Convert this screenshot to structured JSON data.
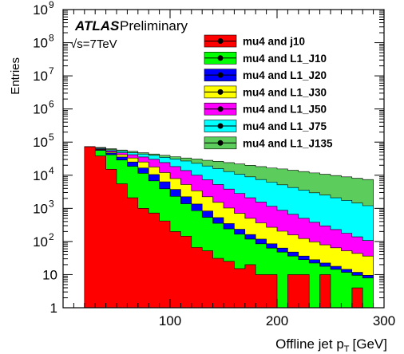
{
  "chart_data": {
    "type": "area",
    "title": "",
    "xlabel_main": "Offline jet p",
    "xlabel_sub": "T",
    "xlabel_unit": "[GeV]",
    "ylabel": "Entries",
    "xlim": [
      0,
      300
    ],
    "ylim_log10": [
      0,
      9
    ],
    "log_y": true,
    "x_ticks": [
      100,
      200,
      300
    ],
    "y_ticks": [
      {
        "v": 1,
        "label": "1"
      },
      {
        "v": 10,
        "label": "10"
      },
      {
        "v": 100,
        "label": "10",
        "exp": "2"
      },
      {
        "v": 1000,
        "label": "10",
        "exp": "3"
      },
      {
        "v": 10000,
        "label": "10",
        "exp": "4"
      },
      {
        "v": 100000,
        "label": "10",
        "exp": "5"
      },
      {
        "v": 1000000,
        "label": "10",
        "exp": "6"
      },
      {
        "v": 10000000,
        "label": "10",
        "exp": "7"
      },
      {
        "v": 100000000,
        "label": "10",
        "exp": "8"
      },
      {
        "v": 1000000000,
        "label": "10",
        "exp": "9"
      }
    ],
    "annotation": {
      "atlas": "ATLAS",
      "prelim": "Preliminary",
      "energy": "√s=7TeV"
    },
    "bin_width": 10,
    "x_start": 20,
    "x_end": 290,
    "legend_position": "top-right",
    "series": [
      {
        "name": "mu4 and L1_J135",
        "color": "#5ccc5c",
        "log10": [
          4.86,
          4.84,
          4.8,
          4.76,
          4.72,
          4.68,
          4.64,
          4.6,
          4.56,
          4.52,
          4.49,
          4.45,
          4.42,
          4.38,
          4.34,
          4.3,
          4.26,
          4.22,
          4.19,
          4.15,
          4.11,
          4.07,
          4.03,
          3.99,
          3.95,
          3.91,
          3.87
        ]
      },
      {
        "name": "mu4 and L1_J75",
        "color": "#00ffff",
        "log10": [
          4.86,
          4.82,
          4.77,
          4.73,
          4.68,
          4.64,
          4.6,
          4.54,
          4.49,
          4.43,
          4.36,
          4.28,
          4.2,
          4.11,
          4.03,
          3.95,
          3.87,
          3.79,
          3.71,
          3.63,
          3.55,
          3.47,
          3.4,
          3.32,
          3.24,
          3.16,
          3.08
        ]
      },
      {
        "name": "mu4 and L1_J50",
        "color": "#ff00ff",
        "log10": [
          4.86,
          4.8,
          4.74,
          4.68,
          4.62,
          4.55,
          4.48,
          4.38,
          4.26,
          4.14,
          4.0,
          3.86,
          3.72,
          3.58,
          3.45,
          3.32,
          3.19,
          3.06,
          2.94,
          2.82,
          2.7,
          2.58,
          2.47,
          2.36,
          2.25,
          2.14,
          2.03
        ]
      },
      {
        "name": "mu4 and L1_J30",
        "color": "#ffff00",
        "log10": [
          4.86,
          4.78,
          4.7,
          4.62,
          4.52,
          4.4,
          4.25,
          4.08,
          3.9,
          3.72,
          3.53,
          3.35,
          3.18,
          3.01,
          2.85,
          2.7,
          2.56,
          2.43,
          2.31,
          2.2,
          2.09,
          1.99,
          1.9,
          1.81,
          1.72,
          1.64,
          1.56
        ]
      },
      {
        "name": "mu4 and L1_J20",
        "color": "#0000ff",
        "log10": [
          4.86,
          4.77,
          4.67,
          4.55,
          4.4,
          4.22,
          4.02,
          3.8,
          3.57,
          3.35,
          3.13,
          2.92,
          2.72,
          2.54,
          2.37,
          2.21,
          2.07,
          1.93,
          1.8,
          1.68,
          1.56,
          1.45,
          1.35,
          1.25,
          1.16,
          1.07,
          0.98
        ]
      },
      {
        "name": "mu4 and L1_J10",
        "color": "#00ff00",
        "log10": [
          4.86,
          4.75,
          4.62,
          4.46,
          4.27,
          4.06,
          3.83,
          3.59,
          3.36,
          3.14,
          2.93,
          2.73,
          2.55,
          2.38,
          2.22,
          2.07,
          1.93,
          1.8,
          1.68,
          1.56,
          1.45,
          1.35,
          1.25,
          1.16,
          1.07,
          0.98,
          0.9
        ]
      },
      {
        "name": "mu4 and j10",
        "color": "#ff0000",
        "log10": [
          4.86,
          4.58,
          4.18,
          3.74,
          3.32,
          3.0,
          2.86,
          2.62,
          2.3,
          2.16,
          1.82,
          1.72,
          1.49,
          1.4,
          1.18,
          1.3,
          1.0,
          1.0,
          0.0,
          1.0,
          1.0,
          0.0,
          1.0,
          0.0,
          0.0,
          0.6,
          0.0
        ]
      }
    ],
    "legend_order": [
      "mu4 and j10",
      "mu4 and L1_J10",
      "mu4 and L1_J20",
      "mu4 and L1_J30",
      "mu4 and L1_J50",
      "mu4 and L1_J75",
      "mu4 and L1_J135"
    ]
  }
}
